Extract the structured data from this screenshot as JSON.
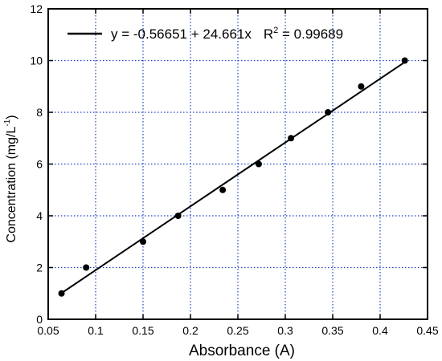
{
  "chart_data": {
    "type": "scatter",
    "xlabel": "Absorbance (A)",
    "ylabel": "Concentration (mg/L",
    "ylabel_superscript": "-1",
    "ylabel_suffix": ")",
    "xlim": [
      0.05,
      0.45
    ],
    "ylim": [
      0,
      12
    ],
    "xticks": [
      0.05,
      0.1,
      0.15,
      0.2,
      0.25,
      0.3,
      0.35,
      0.4,
      0.45
    ],
    "xtick_labels": [
      "0.05",
      "0.1",
      "0.15",
      "0.2",
      "0.25",
      "0.3",
      "0.35",
      "0.4",
      "0.45"
    ],
    "yticks": [
      0,
      2,
      4,
      6,
      8,
      10,
      12
    ],
    "ytick_labels": [
      "0",
      "2",
      "4",
      "6",
      "8",
      "10",
      "12"
    ],
    "grid": true,
    "grid_style": "dotted",
    "legend_position": "top",
    "points": [
      {
        "x": 0.064,
        "y": 1
      },
      {
        "x": 0.09,
        "y": 2
      },
      {
        "x": 0.15,
        "y": 3
      },
      {
        "x": 0.187,
        "y": 4
      },
      {
        "x": 0.234,
        "y": 5
      },
      {
        "x": 0.272,
        "y": 6
      },
      {
        "x": 0.306,
        "y": 7
      },
      {
        "x": 0.345,
        "y": 8
      },
      {
        "x": 0.38,
        "y": 9
      },
      {
        "x": 0.426,
        "y": 10
      }
    ],
    "fit": {
      "intercept": -0.56651,
      "slope": 24.661,
      "x_range": [
        0.064,
        0.426
      ],
      "equation_label": "y = -0.56651 + 24.661x",
      "r2_prefix": "R",
      "r2_superscript": "2",
      "r2_value": " = 0.99689"
    },
    "colors": {
      "line": "#000000",
      "marker": "#000000",
      "grid": "#1f3fbf",
      "frame": "#000000"
    }
  }
}
